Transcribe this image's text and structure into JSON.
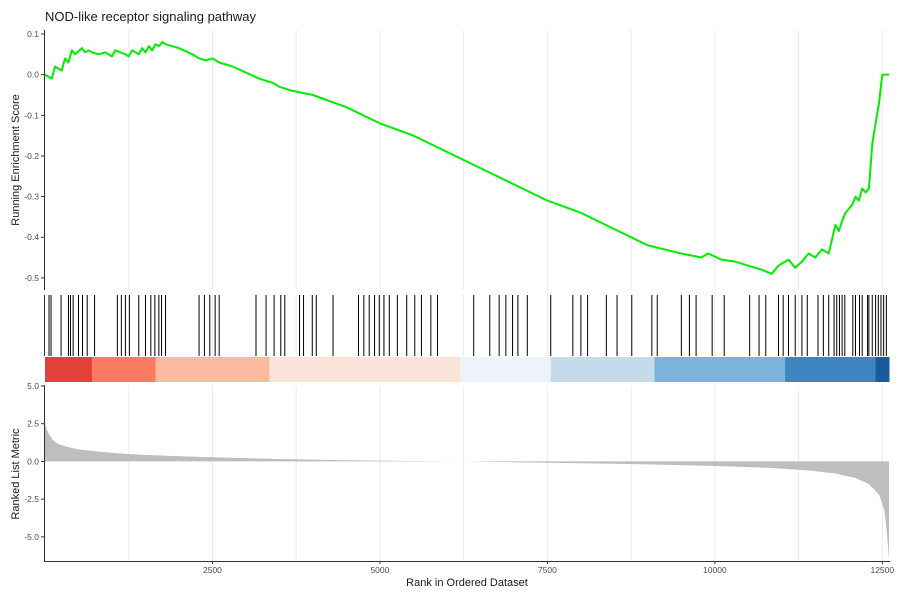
{
  "chart_data": {
    "type": "line",
    "title": "NOD-like receptor signaling pathway",
    "xlabel": "Rank in Ordered Dataset",
    "x_ticks": [
      2500,
      5000,
      7500,
      10000,
      12500
    ],
    "x_tick_labels": [
      "2500",
      "5000",
      "7500",
      "10000",
      "12500"
    ],
    "xlim": [
      0,
      12600
    ],
    "grid": true,
    "panels": {
      "running_score": {
        "ylabel": "Running Enrichment Score",
        "ylim": [
          -0.52,
          0.1
        ],
        "y_ticks": [
          0.1,
          0.0,
          -0.1,
          -0.2,
          -0.3,
          -0.4,
          -0.5
        ],
        "y_tick_labels": [
          "0.1",
          "0.0",
          "-0.1",
          "-0.2",
          "-0.3",
          "-0.4",
          "-0.5"
        ],
        "line_color": "#00ee00",
        "series": [
          {
            "x": [
              0,
              100,
              150,
              250,
              300,
              350,
              400,
              450,
              550,
              600,
              650,
              700,
              800,
              900,
              1000,
              1050,
              1200,
              1250,
              1300,
              1400,
              1450,
              1500,
              1550,
              1600,
              1650,
              1700,
              1750,
              1800,
              2000,
              2200,
              2300,
              2400,
              2500,
              2600,
              2800,
              3200,
              3400,
              3500,
              3700,
              4000,
              4500,
              5000,
              5500,
              6000,
              6500,
              7000,
              7500,
              8000,
              8500,
              9000,
              9500,
              9800,
              9900,
              10100,
              10300,
              10500,
              10700,
              10850,
              10950,
              11000,
              11100,
              11200,
              11300,
              11400,
              11500,
              11600,
              11700,
              11800,
              11850,
              11900,
              11950,
              12050,
              12100,
              12150,
              12200,
              12250,
              12300,
              12350,
              12400,
              12450,
              12500,
              12550,
              12600
            ],
            "values": [
              0.0,
              -0.01,
              0.02,
              0.01,
              0.04,
              0.03,
              0.06,
              0.05,
              0.065,
              0.055,
              0.06,
              0.055,
              0.05,
              0.055,
              0.045,
              0.06,
              0.05,
              0.045,
              0.06,
              0.05,
              0.065,
              0.055,
              0.07,
              0.06,
              0.075,
              0.07,
              0.08,
              0.075,
              0.065,
              0.05,
              0.04,
              0.035,
              0.04,
              0.03,
              0.02,
              -0.01,
              -0.02,
              -0.03,
              -0.04,
              -0.05,
              -0.08,
              -0.12,
              -0.15,
              -0.19,
              -0.23,
              -0.27,
              -0.31,
              -0.34,
              -0.38,
              -0.42,
              -0.44,
              -0.45,
              -0.44,
              -0.455,
              -0.46,
              -0.47,
              -0.48,
              -0.49,
              -0.47,
              -0.465,
              -0.455,
              -0.475,
              -0.46,
              -0.44,
              -0.45,
              -0.43,
              -0.44,
              -0.37,
              -0.385,
              -0.36,
              -0.34,
              -0.32,
              -0.3,
              -0.31,
              -0.28,
              -0.29,
              -0.28,
              -0.17,
              -0.12,
              -0.07,
              0.0,
              0.0,
              0.0
            ]
          }
        ]
      },
      "hits": {
        "positions": [
          60,
          90,
          240,
          350,
          380,
          420,
          500,
          560,
          630,
          740,
          1080,
          1140,
          1200,
          1260,
          1400,
          1500,
          1580,
          1640,
          1700,
          1740,
          1800,
          2300,
          2380,
          2460,
          2540,
          2600,
          3150,
          3300,
          3420,
          3520,
          3580,
          3800,
          3860,
          3990,
          4050,
          4300,
          4680,
          4760,
          4840,
          4920,
          4990,
          5060,
          5140,
          5260,
          5400,
          5520,
          5620,
          5760,
          5860,
          6400,
          6640,
          6780,
          6880,
          6980,
          7060,
          7200,
          7550,
          7880,
          8000,
          8100,
          8380,
          8540,
          8760,
          9060,
          9140,
          9500,
          9620,
          9720,
          9960,
          10140,
          10520,
          10660,
          10760,
          10950,
          11020,
          11100,
          11200,
          11300,
          11380,
          11540,
          11620,
          11700,
          11780,
          11820,
          11860,
          11900,
          11940,
          12060,
          12100,
          12160,
          12200,
          12280,
          12300,
          12350,
          12400,
          12440,
          12480,
          12520,
          12560
        ]
      },
      "color_band": {
        "segments": [
          {
            "from": 0,
            "to": 700,
            "color": "#e2403a"
          },
          {
            "from": 700,
            "to": 1650,
            "color": "#f87a60"
          },
          {
            "from": 1650,
            "to": 3350,
            "color": "#fcb9a0"
          },
          {
            "from": 3350,
            "to": 6200,
            "color": "#fde4d8"
          },
          {
            "from": 6200,
            "to": 7550,
            "color": "#eef3fb"
          },
          {
            "from": 7550,
            "to": 9100,
            "color": "#c6dbea"
          },
          {
            "from": 9100,
            "to": 11050,
            "color": "#7ab5d9"
          },
          {
            "from": 11050,
            "to": 12400,
            "color": "#3e86c2"
          },
          {
            "from": 12400,
            "to": 12600,
            "color": "#195aa0"
          }
        ]
      },
      "ranked_metric": {
        "ylabel": "Ranked List Metric",
        "ylim": [
          -6.6,
          5.0
        ],
        "y_ticks": [
          5.0,
          2.5,
          0.0,
          -2.5,
          -5.0
        ],
        "y_tick_labels": [
          "5.0",
          "2.5",
          "0.0",
          "-2.5",
          "-5.0"
        ],
        "fill_color": "#bebebe",
        "series": [
          {
            "x": [
              0,
              20,
              60,
              120,
              200,
              350,
              500,
              800,
              1200,
              1800,
              2500,
              3500,
              4500,
              5500,
              6200,
              7000,
              8000,
              9000,
              10000,
              10800,
              11400,
              11800,
              12100,
              12300,
              12450,
              12530,
              12570,
              12600
            ],
            "values": [
              2.6,
              2.2,
              1.8,
              1.4,
              1.15,
              0.95,
              0.8,
              0.65,
              0.5,
              0.38,
              0.28,
              0.16,
              0.08,
              0.03,
              0.0,
              -0.05,
              -0.12,
              -0.2,
              -0.3,
              -0.42,
              -0.6,
              -0.8,
              -1.1,
              -1.5,
              -2.2,
              -3.2,
              -4.8,
              -6.5
            ]
          }
        ]
      }
    }
  }
}
